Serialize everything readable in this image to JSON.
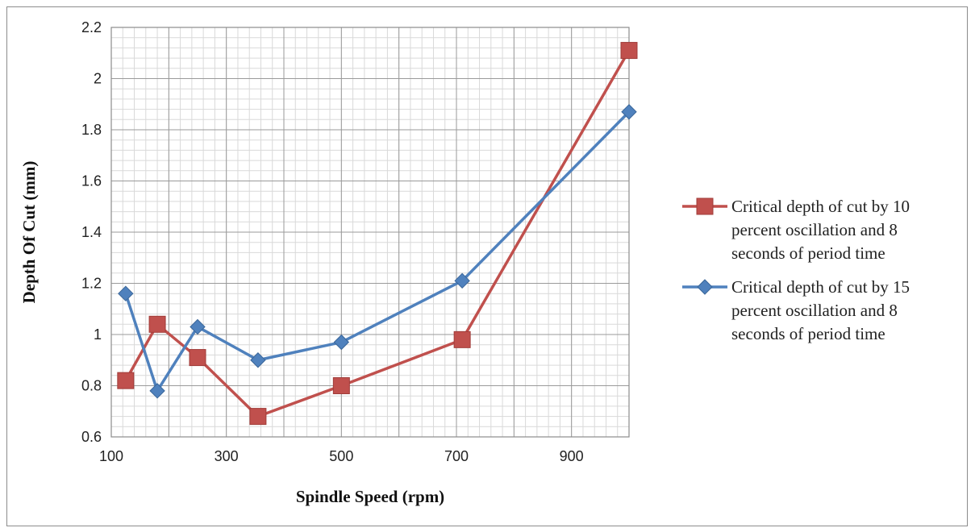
{
  "chart_data": {
    "type": "line",
    "title": "",
    "xlabel": "Spindle Speed (rpm)",
    "ylabel": "Depth Of Cut (mm)",
    "xlim": [
      100,
      1000
    ],
    "ylim": [
      0.6,
      2.2
    ],
    "x_ticks": [
      "100",
      "300",
      "500",
      "700",
      "900"
    ],
    "y_ticks": [
      "0.6",
      "0.8",
      "1",
      "1.2",
      "1.4",
      "1.6",
      "1.8",
      "2",
      "2.2"
    ],
    "grid": true,
    "legend_position": "right",
    "series": [
      {
        "name": "Critical depth of cut by 10 percent oscillation and 8 seconds of period time",
        "legend_lines": [
          "Critical depth of cut by 10",
          "percent oscillation and 8",
          "seconds of period time"
        ],
        "color": "#c0504d",
        "marker": "square",
        "x": [
          125,
          180,
          250,
          355,
          500,
          710,
          1000
        ],
        "y": [
          0.82,
          1.04,
          0.91,
          0.68,
          0.8,
          0.98,
          2.11
        ]
      },
      {
        "name": "Critical depth of cut by 15 percent oscillation and 8 seconds of period time",
        "legend_lines": [
          "Critical depth of cut by 15",
          "percent oscillation and 8",
          "seconds of period time"
        ],
        "color": "#4f81bd",
        "marker": "diamond",
        "x": [
          125,
          180,
          250,
          355,
          500,
          710,
          1000
        ],
        "y": [
          1.16,
          0.78,
          1.03,
          0.9,
          0.97,
          1.21,
          1.87
        ]
      }
    ]
  }
}
